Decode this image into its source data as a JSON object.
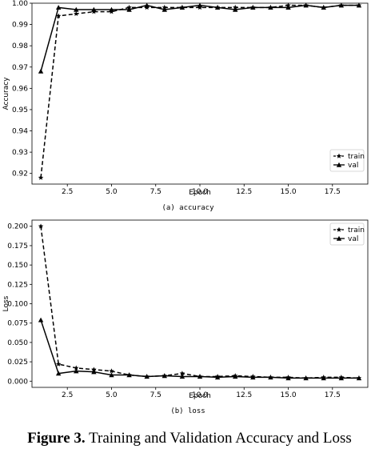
{
  "chart_data": [
    {
      "type": "line",
      "xlabel": "Epoch",
      "ylabel": "Accuracy",
      "xlim": [
        0.5,
        19.5
      ],
      "ylim": [
        0.915,
        1.0
      ],
      "x_ticks": [
        "2.5",
        "5.0",
        "7.5",
        "10.0",
        "12.5",
        "15.0",
        "17.5"
      ],
      "x_tick_values": [
        2.5,
        5.0,
        7.5,
        10.0,
        12.5,
        15.0,
        17.5
      ],
      "y_ticks": [
        "0.92",
        "0.93",
        "0.94",
        "0.95",
        "0.96",
        "0.97",
        "0.98",
        "0.99",
        "1.00"
      ],
      "y_tick_values": [
        0.92,
        0.93,
        0.94,
        0.95,
        0.96,
        0.97,
        0.98,
        0.99,
        1.0
      ],
      "legend_position": "lower-right",
      "caption": "(a)  accuracy",
      "series": [
        {
          "name": "train",
          "marker": "star",
          "line": "dashed",
          "x": [
            1,
            2,
            3,
            4,
            5,
            6,
            7,
            8,
            9,
            10,
            11,
            12,
            13,
            14,
            15,
            16,
            17,
            18,
            19
          ],
          "y": [
            0.918,
            0.994,
            0.995,
            0.996,
            0.996,
            0.998,
            0.998,
            0.998,
            0.998,
            0.998,
            0.998,
            0.998,
            0.998,
            0.998,
            0.999,
            0.999,
            0.998,
            0.999,
            0.999
          ]
        },
        {
          "name": "val",
          "marker": "triangle",
          "line": "solid",
          "x": [
            1,
            2,
            3,
            4,
            5,
            6,
            7,
            8,
            9,
            10,
            11,
            12,
            13,
            14,
            15,
            16,
            17,
            18,
            19
          ],
          "y": [
            0.968,
            0.998,
            0.997,
            0.997,
            0.997,
            0.997,
            0.999,
            0.997,
            0.998,
            0.999,
            0.998,
            0.997,
            0.998,
            0.998,
            0.998,
            0.999,
            0.998,
            0.999,
            0.999
          ]
        }
      ]
    },
    {
      "type": "line",
      "xlabel": "Epoch",
      "ylabel": "Loss",
      "xlim": [
        0.5,
        19.5
      ],
      "ylim": [
        -0.008,
        0.208
      ],
      "x_ticks": [
        "2.5",
        "5.0",
        "7.5",
        "10.0",
        "12.5",
        "15.0",
        "17.5"
      ],
      "x_tick_values": [
        2.5,
        5.0,
        7.5,
        10.0,
        12.5,
        15.0,
        17.5
      ],
      "y_ticks": [
        "0.000",
        "0.025",
        "0.050",
        "0.075",
        "0.100",
        "0.125",
        "0.150",
        "0.175",
        "0.200"
      ],
      "y_tick_values": [
        0.0,
        0.025,
        0.05,
        0.075,
        0.1,
        0.125,
        0.15,
        0.175,
        0.2
      ],
      "legend_position": "upper-right",
      "caption": "(b)  loss",
      "series": [
        {
          "name": "train",
          "marker": "star",
          "line": "dashed",
          "x": [
            1,
            2,
            3,
            4,
            5,
            6,
            7,
            8,
            9,
            10,
            11,
            12,
            13,
            14,
            15,
            16,
            17,
            18,
            19
          ],
          "y": [
            0.2,
            0.022,
            0.017,
            0.015,
            0.013,
            0.008,
            0.006,
            0.007,
            0.01,
            0.006,
            0.006,
            0.007,
            0.006,
            0.005,
            0.005,
            0.004,
            0.005,
            0.005,
            0.004
          ]
        },
        {
          "name": "val",
          "marker": "triangle",
          "line": "solid",
          "x": [
            1,
            2,
            3,
            4,
            5,
            6,
            7,
            8,
            9,
            10,
            11,
            12,
            13,
            14,
            15,
            16,
            17,
            18,
            19
          ],
          "y": [
            0.079,
            0.01,
            0.013,
            0.012,
            0.008,
            0.008,
            0.006,
            0.007,
            0.006,
            0.006,
            0.005,
            0.006,
            0.005,
            0.005,
            0.004,
            0.004,
            0.004,
            0.004,
            0.004
          ]
        }
      ]
    }
  ],
  "figure_caption": {
    "label": "Figure 3.",
    "text": " Training and Validation Accuracy and Loss"
  }
}
